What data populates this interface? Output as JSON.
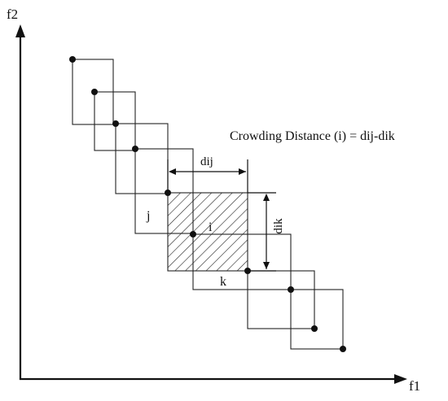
{
  "axes": {
    "x_label": "f1",
    "y_label": "f2"
  },
  "annotation": {
    "formula": "Crowding Distance (i) = dij-dik"
  },
  "labels": {
    "dij": "dij",
    "dik": "dik",
    "point_i": "i",
    "point_j": "j",
    "point_k": "k"
  },
  "hatch_color": "#222222"
}
